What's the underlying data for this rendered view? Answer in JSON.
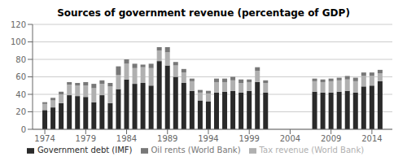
{
  "chart_data": {
    "type": "bar",
    "stacked": true,
    "title": "Sources of government revenue (percentage of GDP)",
    "x": [
      1974,
      1975,
      1976,
      1977,
      1978,
      1979,
      1980,
      1981,
      1982,
      1983,
      1984,
      1985,
      1986,
      1987,
      1988,
      1989,
      1990,
      1991,
      1992,
      1993,
      1994,
      1995,
      1996,
      1997,
      1998,
      1999,
      2000,
      2001,
      2007,
      2008,
      2009,
      2010,
      2011,
      2012,
      2013,
      2014,
      2015
    ],
    "series": [
      {
        "name": "Government debt (IMF)",
        "color": "#2a2a2a",
        "values": [
          22,
          25,
          30,
          39,
          38,
          37,
          31,
          39,
          30,
          46,
          57,
          52,
          53,
          50,
          78,
          73,
          60,
          53,
          44,
          33,
          32,
          42,
          43,
          44,
          42,
          44,
          54,
          42,
          43,
          42,
          42,
          43,
          44,
          42,
          49,
          50,
          55
        ]
      },
      {
        "name": "Tax revenue (World Bank)",
        "color": "#b0b0b0",
        "values": [
          7,
          8,
          10,
          12,
          12,
          13,
          16,
          13,
          19,
          16,
          18,
          18,
          18,
          20,
          12,
          15,
          13,
          12,
          11,
          9,
          9,
          12,
          11,
          12,
          11,
          10,
          13,
          11,
          12,
          12,
          13,
          13,
          13,
          13,
          12,
          11,
          9
        ]
      },
      {
        "name": "Oil rents (World Bank)",
        "color": "#787878",
        "values": [
          2,
          3,
          3,
          3,
          3,
          4,
          5,
          4,
          4,
          10,
          5,
          5,
          3,
          5,
          4,
          6,
          4,
          4,
          3,
          3,
          3,
          4,
          4,
          4,
          4,
          3,
          4,
          3,
          3,
          3,
          3,
          3,
          4,
          4,
          4,
          4,
          4
        ]
      }
    ],
    "xlim": [
      1972.5,
      2016.5
    ],
    "xticks": [
      1974,
      1979,
      1984,
      1989,
      1994,
      1999,
      2004,
      2009,
      2014
    ],
    "ylim": [
      0,
      120
    ],
    "yticks": [
      0,
      20,
      40,
      60,
      80,
      100,
      120
    ],
    "grid": true,
    "legend": "bottom"
  }
}
